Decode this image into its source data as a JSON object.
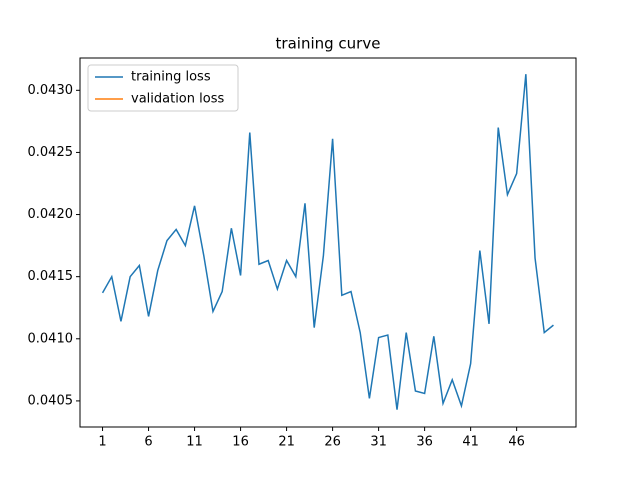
{
  "chart_data": {
    "type": "line",
    "title": "training curve",
    "x": [
      1,
      2,
      3,
      4,
      5,
      6,
      7,
      8,
      9,
      10,
      11,
      12,
      13,
      14,
      15,
      16,
      17,
      18,
      19,
      20,
      21,
      22,
      23,
      24,
      25,
      26,
      27,
      28,
      29,
      30,
      31,
      32,
      33,
      34,
      35,
      36,
      37,
      38,
      39,
      40,
      41,
      42,
      43,
      44,
      45,
      46,
      47,
      48,
      49,
      50
    ],
    "series": [
      {
        "name": "training loss",
        "color": "#1f77b4",
        "values": [
          0.04137,
          0.0415,
          0.04114,
          0.0415,
          0.04159,
          0.04118,
          0.04155,
          0.04179,
          0.04188,
          0.04175,
          0.04207,
          0.04167,
          0.04122,
          0.04138,
          0.04189,
          0.04151,
          0.04266,
          0.0416,
          0.04163,
          0.0414,
          0.04163,
          0.0415,
          0.04209,
          0.04109,
          0.04167,
          0.04261,
          0.04135,
          0.04138,
          0.04105,
          0.04052,
          0.04101,
          0.04103,
          0.04043,
          0.04105,
          0.04058,
          0.04056,
          0.04102,
          0.04048,
          0.04067,
          0.04046,
          0.0408,
          0.04171,
          0.04112,
          0.0427,
          0.04216,
          0.04233,
          0.04313,
          0.04165,
          0.04105,
          0.04111
        ]
      },
      {
        "name": "validation loss",
        "color": "#ff7f0e",
        "values": [
          null,
          null,
          null,
          null,
          null,
          null,
          null,
          null,
          null,
          null,
          null,
          null,
          null,
          null,
          null,
          null,
          null,
          null,
          null,
          null,
          null,
          null,
          null,
          null,
          null,
          null,
          null,
          null,
          null,
          null,
          null,
          null,
          null,
          null,
          null,
          null,
          null,
          null,
          null,
          null,
          null,
          null,
          null,
          null,
          null,
          null,
          null,
          null,
          null,
          null
        ]
      }
    ],
    "xlim": [
      -1.45,
      52.45
    ],
    "xticks": [
      1,
      6,
      11,
      16,
      21,
      26,
      31,
      36,
      41,
      46
    ],
    "ylim": [
      0.04029,
      0.04326
    ],
    "yticks": [
      0.0405,
      {
        "value": 0.041,
        "label": "0.0410"
      },
      0.0415,
      {
        "value": 0.042,
        "label": "0.0420"
      },
      0.0425,
      {
        "value": 0.043,
        "label": "0.0430"
      }
    ],
    "legend": "upper left",
    "grid": false
  }
}
